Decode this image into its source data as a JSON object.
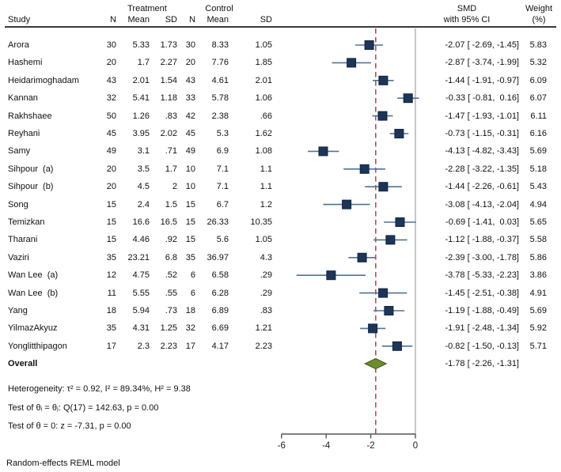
{
  "header": {
    "study": "Study",
    "treatment_group": "Treatment",
    "control_group": "Control",
    "n": "N",
    "mean": "Mean",
    "sd": "SD",
    "smd_line1": "SMD",
    "smd_line2": "with 95% CI",
    "weight_line1": "Weight",
    "weight_line2": "(%)"
  },
  "chart_data": {
    "type": "forest",
    "effect_measure": "SMD",
    "axis": {
      "tick_labels": [
        "-6",
        "-4",
        "-2",
        "0"
      ],
      "tick_values": [
        -6,
        -4,
        -2,
        0
      ],
      "xlim": [
        -6,
        0
      ]
    },
    "ref_line_value": -1.78,
    "zero_line_value": 0,
    "studies": [
      {
        "name": "Arora",
        "t_n": "30",
        "t_mean": "5.33",
        "t_sd": "1.73",
        "c_n": "30",
        "c_mean": "8.33",
        "c_sd": "1.05",
        "est": -2.07,
        "lo": -2.69,
        "hi": -1.45,
        "ci_label": "-2.07 [ -2.69, -1.45]",
        "weight": "5.83"
      },
      {
        "name": "Hashemi",
        "t_n": "20",
        "t_mean": "1.7",
        "t_sd": "2.27",
        "c_n": "20",
        "c_mean": "7.76",
        "c_sd": "1.85",
        "est": -2.87,
        "lo": -3.74,
        "hi": -1.99,
        "ci_label": "-2.87 [ -3.74, -1.99]",
        "weight": "5.32"
      },
      {
        "name": "Heidarimoghadam",
        "t_n": "43",
        "t_mean": "2.01",
        "t_sd": "1.54",
        "c_n": "43",
        "c_mean": "4.61",
        "c_sd": "2.01",
        "est": -1.44,
        "lo": -1.91,
        "hi": -0.97,
        "ci_label": "-1.44 [ -1.91, -0.97]",
        "weight": "6.09"
      },
      {
        "name": "Kannan",
        "t_n": "32",
        "t_mean": "5.41",
        "t_sd": "1.18",
        "c_n": "33",
        "c_mean": "5.78",
        "c_sd": "1.06",
        "est": -0.33,
        "lo": -0.81,
        "hi": 0.16,
        "ci_label": "-0.33 [ -0.81,  0.16]",
        "weight": "6.07"
      },
      {
        "name": "Rakhshaee",
        "t_n": "50",
        "t_mean": "1.26",
        "t_sd": ".83",
        "c_n": "42",
        "c_mean": "2.38",
        "c_sd": ".66",
        "est": -1.47,
        "lo": -1.93,
        "hi": -1.01,
        "ci_label": "-1.47 [ -1.93, -1.01]",
        "weight": "6.11"
      },
      {
        "name": "Reyhani",
        "t_n": "45",
        "t_mean": "3.95",
        "t_sd": "2.02",
        "c_n": "45",
        "c_mean": "5.3",
        "c_sd": "1.62",
        "est": -0.73,
        "lo": -1.15,
        "hi": -0.31,
        "ci_label": "-0.73 [ -1.15, -0.31]",
        "weight": "6.16"
      },
      {
        "name": "Samy",
        "t_n": "49",
        "t_mean": "3.1",
        "t_sd": ".71",
        "c_n": "49",
        "c_mean": "6.9",
        "c_sd": "1.08",
        "est": -4.13,
        "lo": -4.82,
        "hi": -3.43,
        "ci_label": "-4.13 [ -4.82, -3.43]",
        "weight": "5.69"
      },
      {
        "name": "Sihpour  (a)",
        "t_n": "20",
        "t_mean": "3.5",
        "t_sd": "1.7",
        "c_n": "10",
        "c_mean": "7.1",
        "c_sd": "1.1",
        "est": -2.28,
        "lo": -3.22,
        "hi": -1.35,
        "ci_label": "-2.28 [ -3.22, -1.35]",
        "weight": "5.18"
      },
      {
        "name": "Sihpour  (b)",
        "t_n": "20",
        "t_mean": "4.5",
        "t_sd": "2",
        "c_n": "10",
        "c_mean": "7.1",
        "c_sd": "1.1",
        "est": -1.44,
        "lo": -2.26,
        "hi": -0.61,
        "ci_label": "-1.44 [ -2.26, -0.61]",
        "weight": "5.43"
      },
      {
        "name": "Song",
        "t_n": "15",
        "t_mean": "2.4",
        "t_sd": "1.5",
        "c_n": "15",
        "c_mean": "6.7",
        "c_sd": "1.2",
        "est": -3.08,
        "lo": -4.13,
        "hi": -2.04,
        "ci_label": "-3.08 [ -4.13, -2.04]",
        "weight": "4.94"
      },
      {
        "name": "Temizkan",
        "t_n": "15",
        "t_mean": "16.6",
        "t_sd": "16.5",
        "c_n": "15",
        "c_mean": "26.33",
        "c_sd": "10.35",
        "est": -0.69,
        "lo": -1.41,
        "hi": 0.03,
        "ci_label": "-0.69 [ -1.41,  0.03]",
        "weight": "5.65"
      },
      {
        "name": "Tharani",
        "t_n": "15",
        "t_mean": "4.46",
        "t_sd": ".92",
        "c_n": "15",
        "c_mean": "5.6",
        "c_sd": "1.05",
        "est": -1.12,
        "lo": -1.88,
        "hi": -0.37,
        "ci_label": "-1.12 [ -1.88, -0.37]",
        "weight": "5.58"
      },
      {
        "name": "Vaziri",
        "t_n": "35",
        "t_mean": "23.21",
        "t_sd": "6.8",
        "c_n": "35",
        "c_mean": "36.97",
        "c_sd": "4.3",
        "est": -2.39,
        "lo": -3.0,
        "hi": -1.78,
        "ci_label": "-2.39 [ -3.00, -1.78]",
        "weight": "5.86"
      },
      {
        "name": "Wan Lee  (a)",
        "t_n": "12",
        "t_mean": "4.75",
        "t_sd": ".52",
        "c_n": "6",
        "c_mean": "6.58",
        "c_sd": ".29",
        "est": -3.78,
        "lo": -5.33,
        "hi": -2.23,
        "ci_label": "-3.78 [ -5.33, -2.23]",
        "weight": "3.86"
      },
      {
        "name": "Wan Lee  (b)",
        "t_n": "11",
        "t_mean": "5.55",
        "t_sd": ".55",
        "c_n": "6",
        "c_mean": "6.28",
        "c_sd": ".29",
        "est": -1.45,
        "lo": -2.51,
        "hi": -0.38,
        "ci_label": "-1.45 [ -2.51, -0.38]",
        "weight": "4.91"
      },
      {
        "name": "Yang",
        "t_n": "18",
        "t_mean": "5.94",
        "t_sd": ".73",
        "c_n": "18",
        "c_mean": "6.89",
        "c_sd": ".83",
        "est": -1.19,
        "lo": -1.88,
        "hi": -0.49,
        "ci_label": "-1.19 [ -1.88, -0.49]",
        "weight": "5.69"
      },
      {
        "name": "YilmazAkyuz",
        "t_n": "35",
        "t_mean": "4.31",
        "t_sd": "1.25",
        "c_n": "32",
        "c_mean": "6.69",
        "c_sd": "1.21",
        "est": -1.91,
        "lo": -2.48,
        "hi": -1.34,
        "ci_label": "-1.91 [ -2.48, -1.34]",
        "weight": "5.92"
      },
      {
        "name": "Yonglitthipagon",
        "t_n": "17",
        "t_mean": "2.3",
        "t_sd": "2.23",
        "c_n": "17",
        "c_mean": "4.17",
        "c_sd": "2.23",
        "est": -0.82,
        "lo": -1.5,
        "hi": -0.13,
        "ci_label": "-0.82 [ -1.50, -0.13]",
        "weight": "5.71"
      }
    ],
    "overall": {
      "label": "Overall",
      "est": -1.78,
      "lo": -2.26,
      "hi": -1.31,
      "ci_label": "-1.78 [ -2.26, -1.31]"
    },
    "colors": {
      "marker": "#1d3557",
      "marker_stroke": "#122441",
      "ci_line": "#4f7298",
      "diamond_fill": "#6d8c2f",
      "diamond_stroke": "#46611c",
      "ref_line": "#c04a5a",
      "zero_line": "#a9a9a9",
      "axis": "#555555"
    }
  },
  "stats": {
    "overall_label": "Overall",
    "heterogeneity": "Heterogeneity: τ² = 0.92, I² = 89.34%, H² = 9.38",
    "test_theta": "Test of θᵢ = θⱼ: Q(17) = 142.63, p = 0.00",
    "test_zero": "Test of θ = 0: z = -7.31, p = 0.00"
  },
  "footer": "Random-effects REML model"
}
